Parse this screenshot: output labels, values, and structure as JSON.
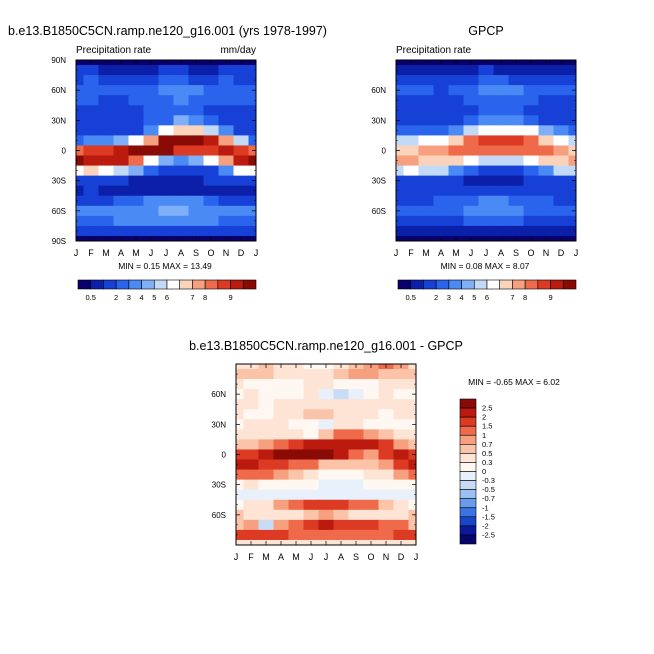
{
  "chart_data": [
    {
      "type": "heatmap",
      "id": "model",
      "title": "b.e13.B1850C5CN.ramp.ne120_g16.001 (yrs 1978-1997)",
      "subtitle_left": "Precipitation rate",
      "subtitle_right": "mm/day",
      "x_ticks": [
        "J",
        "F",
        "M",
        "A",
        "M",
        "J",
        "J",
        "A",
        "S",
        "O",
        "N",
        "D",
        "J"
      ],
      "y_ticks": [
        "90N",
        "60N",
        "30N",
        "0",
        "30S",
        "60S",
        "90S"
      ],
      "y_range": [
        90,
        -90
      ],
      "stats_text": "MIN =  0.15 MAX =  13.49",
      "min": 0.15,
      "max": 13.49,
      "colorbar_labels": [
        "0.5",
        "2",
        "3",
        "4",
        "5",
        "6",
        "7",
        "8",
        "9"
      ],
      "colorbar_colors": [
        "#08016c",
        "#0b1fa8",
        "#1640d6",
        "#2a64ec",
        "#4a8af4",
        "#7eaff7",
        "#c2daf7",
        "#ffffff",
        "#fbd2ba",
        "#f7a07f",
        "#ee6a4a",
        "#dc3a22",
        "#bb1a0e",
        "#8a0a06"
      ],
      "rows": [
        [
          0.5,
          0.5,
          0.5,
          0.5,
          0.5,
          0.5,
          0.5,
          0.5,
          0.5,
          0.5,
          0.5,
          0.5,
          0.5
        ],
        [
          1.3,
          1.3,
          1.2,
          1.0,
          1.0,
          1.2,
          1.4,
          1.3,
          1.2,
          1.2,
          1.3,
          1.3,
          1.3
        ],
        [
          2.0,
          2.1,
          2.0,
          1.8,
          1.8,
          2.0,
          2.3,
          2.2,
          1.9,
          2.0,
          2.1,
          2.0,
          2.0
        ],
        [
          2.4,
          2.3,
          2.2,
          2.1,
          2.2,
          2.5,
          3.0,
          2.9,
          2.6,
          2.4,
          2.3,
          2.4,
          2.4
        ],
        [
          2.3,
          2.2,
          2.0,
          2.0,
          2.2,
          2.4,
          2.5,
          2.6,
          2.5,
          2.3,
          2.2,
          2.3,
          2.3
        ],
        [
          1.9,
          1.8,
          1.7,
          1.8,
          2.0,
          2.2,
          2.3,
          2.4,
          2.3,
          2.0,
          1.9,
          1.9,
          1.9
        ],
        [
          1.5,
          1.6,
          1.5,
          1.5,
          1.7,
          2.1,
          2.5,
          3.2,
          3.0,
          2.3,
          1.8,
          1.6,
          1.5
        ],
        [
          1.5,
          1.6,
          1.4,
          1.5,
          1.9,
          2.8,
          4.2,
          5.5,
          5.3,
          4.0,
          3.0,
          2.0,
          1.5
        ],
        [
          2.5,
          2.8,
          3.0,
          3.4,
          4.4,
          6.5,
          9.5,
          11.5,
          11.2,
          9.0,
          6.5,
          4.0,
          2.5
        ],
        [
          7.0,
          7.5,
          8.0,
          8.5,
          9.5,
          10.0,
          9.5,
          8.0,
          7.5,
          7.8,
          8.5,
          8.0,
          7.0
        ],
        [
          9.2,
          9.0,
          8.8,
          8.3,
          7.0,
          5.0,
          3.5,
          3.0,
          3.2,
          4.5,
          6.5,
          8.5,
          9.2
        ],
        [
          5.0,
          5.3,
          4.8,
          4.0,
          3.2,
          2.2,
          1.5,
          1.3,
          1.4,
          1.8,
          3.0,
          4.5,
          5.0
        ],
        [
          1.8,
          2.0,
          1.8,
          1.5,
          1.2,
          1.0,
          1.0,
          1.0,
          1.1,
          1.3,
          1.6,
          1.8,
          1.8
        ],
        [
          1.2,
          1.3,
          1.2,
          1.1,
          1.0,
          1.0,
          1.1,
          1.1,
          1.0,
          1.0,
          1.1,
          1.2,
          1.2
        ],
        [
          1.8,
          1.9,
          2.0,
          2.1,
          2.3,
          2.6,
          3.0,
          2.9,
          2.6,
          2.3,
          2.0,
          1.8,
          1.8
        ],
        [
          2.6,
          2.6,
          2.6,
          2.7,
          2.8,
          3.0,
          3.4,
          3.3,
          3.0,
          2.8,
          2.7,
          2.6,
          2.6
        ],
        [
          2.4,
          2.4,
          2.5,
          2.6,
          2.7,
          2.8,
          3.0,
          3.0,
          2.8,
          2.6,
          2.5,
          2.4,
          2.4
        ],
        [
          1.5,
          1.5,
          1.5,
          1.6,
          1.6,
          1.6,
          1.6,
          1.6,
          1.5,
          1.5,
          1.5,
          1.5,
          1.5
        ],
        [
          0.5,
          0.5,
          0.5,
          0.5,
          0.5,
          0.5,
          0.5,
          0.5,
          0.5,
          0.5,
          0.5,
          0.5,
          0.5
        ]
      ]
    },
    {
      "type": "heatmap",
      "id": "gpcp",
      "title": "GPCP",
      "subtitle_left": "Precipitation rate",
      "subtitle_right": "",
      "x_ticks": [
        "J",
        "F",
        "M",
        "A",
        "M",
        "J",
        "J",
        "A",
        "S",
        "O",
        "N",
        "D",
        "J"
      ],
      "y_ticks": [
        "60N",
        "30N",
        "0",
        "30S",
        "60S"
      ],
      "y_range": [
        90,
        -90
      ],
      "stats_text": "MIN =  0.08 MAX =   8.07",
      "min": 0.08,
      "max": 8.07,
      "colorbar_labels": [
        "0.5",
        "2",
        "3",
        "4",
        "5",
        "6",
        "7",
        "8",
        "9"
      ],
      "colorbar_colors": [
        "#08016c",
        "#0b1fa8",
        "#1640d6",
        "#2a64ec",
        "#4a8af4",
        "#7eaff7",
        "#c2daf7",
        "#ffffff",
        "#fbd2ba",
        "#f7a07f",
        "#ee6a4a",
        "#dc3a22",
        "#bb1a0e",
        "#8a0a06"
      ],
      "rows": [
        [
          0.2,
          0.2,
          0.2,
          0.2,
          0.3,
          0.3,
          0.4,
          0.3,
          0.3,
          0.2,
          0.2,
          0.2,
          0.2
        ],
        [
          1.0,
          1.0,
          0.9,
          0.9,
          1.0,
          1.2,
          1.3,
          1.2,
          1.1,
          1.0,
          1.0,
          1.0,
          1.0
        ],
        [
          1.8,
          1.8,
          1.7,
          1.6,
          1.7,
          1.9,
          2.2,
          2.2,
          2.0,
          1.9,
          1.9,
          1.8,
          1.8
        ],
        [
          2.3,
          2.2,
          2.1,
          2.0,
          2.1,
          2.4,
          2.8,
          2.8,
          2.6,
          2.4,
          2.3,
          2.3,
          2.3
        ],
        [
          2.0,
          1.9,
          1.8,
          1.8,
          1.9,
          2.1,
          2.3,
          2.4,
          2.3,
          2.1,
          2.0,
          2.0,
          2.0
        ],
        [
          1.7,
          1.7,
          1.6,
          1.6,
          1.8,
          2.0,
          2.2,
          2.3,
          2.2,
          2.0,
          1.8,
          1.7,
          1.7
        ],
        [
          1.6,
          1.6,
          1.5,
          1.6,
          1.8,
          2.2,
          2.7,
          3.0,
          2.9,
          2.4,
          2.0,
          1.7,
          1.6
        ],
        [
          2.2,
          2.2,
          2.1,
          2.3,
          2.8,
          3.6,
          4.5,
          5.0,
          4.8,
          4.2,
          3.4,
          2.6,
          2.2
        ],
        [
          3.8,
          4.0,
          4.3,
          4.8,
          5.5,
          6.6,
          7.6,
          8.0,
          7.8,
          7.0,
          5.8,
          4.6,
          3.8
        ],
        [
          5.8,
          6.0,
          6.2,
          6.5,
          6.8,
          6.9,
          6.8,
          6.6,
          6.6,
          6.8,
          6.9,
          6.5,
          5.8
        ],
        [
          6.2,
          6.1,
          6.0,
          5.8,
          5.3,
          4.6,
          4.0,
          3.8,
          4.0,
          4.6,
          5.4,
          6.0,
          6.2
        ],
        [
          4.0,
          4.2,
          4.0,
          3.6,
          3.0,
          2.4,
          2.0,
          1.9,
          2.0,
          2.4,
          3.0,
          3.6,
          4.0
        ],
        [
          1.8,
          1.9,
          1.8,
          1.6,
          1.4,
          1.2,
          1.1,
          1.1,
          1.2,
          1.4,
          1.6,
          1.8,
          1.8
        ],
        [
          1.4,
          1.4,
          1.4,
          1.4,
          1.4,
          1.3,
          1.3,
          1.3,
          1.3,
          1.3,
          1.4,
          1.4,
          1.4
        ],
        [
          1.9,
          1.9,
          2.0,
          2.1,
          2.2,
          2.4,
          2.6,
          2.6,
          2.5,
          2.3,
          2.1,
          1.9,
          1.9
        ],
        [
          2.3,
          2.3,
          2.3,
          2.4,
          2.5,
          2.6,
          2.8,
          2.8,
          2.7,
          2.5,
          2.4,
          2.3,
          2.3
        ],
        [
          1.9,
          1.9,
          1.9,
          2.0,
          2.0,
          2.1,
          2.2,
          2.2,
          2.1,
          2.0,
          1.9,
          1.9,
          1.9
        ],
        [
          0.9,
          0.9,
          0.9,
          0.9,
          0.9,
          0.9,
          0.9,
          0.9,
          0.9,
          0.9,
          0.9,
          0.9,
          0.9
        ],
        [
          0.3,
          0.3,
          0.3,
          0.3,
          0.3,
          0.3,
          0.3,
          0.3,
          0.3,
          0.3,
          0.3,
          0.3,
          0.3
        ]
      ]
    },
    {
      "type": "heatmap",
      "id": "diff",
      "title": "b.e13.B1850C5CN.ramp.ne120_g16.001 - GPCP",
      "subtitle_left": "",
      "subtitle_right": "",
      "x_ticks": [
        "J",
        "F",
        "M",
        "A",
        "M",
        "J",
        "J",
        "A",
        "S",
        "O",
        "N",
        "D",
        "J"
      ],
      "y_ticks": [
        "60N",
        "30N",
        "0",
        "30S",
        "60S"
      ],
      "y_range": [
        90,
        -90
      ],
      "stats_text": "MIN = -0.65 MAX =   6.02",
      "min": -0.65,
      "max": 6.02,
      "colorbar_labels": [
        "2.5",
        "2",
        "1.5",
        "1",
        "0.7",
        "0.5",
        "0.3",
        "0",
        "-0.3",
        "-0.5",
        "-0.7",
        "-1",
        "-1.5",
        "-2",
        "-2.5"
      ],
      "colorbar_colors": [
        "#8a0a06",
        "#bb1a0e",
        "#dc3a22",
        "#ee6a4a",
        "#f7a07f",
        "#fbc4a8",
        "#fde4d4",
        "#fff8f2",
        "#e8f0fb",
        "#c8dcf6",
        "#9cc0f2",
        "#6a9cec",
        "#3a74e2",
        "#1846c8",
        "#0b1a9a",
        "#06066a"
      ],
      "rows": [
        [
          0.3,
          0.4,
          0.5,
          0.4,
          0.3,
          0.2,
          0.2,
          0.3,
          0.6,
          0.9,
          1.2,
          0.9,
          0.3
        ],
        [
          0.5,
          0.6,
          0.5,
          0.4,
          0.4,
          0.3,
          0.4,
          0.6,
          0.8,
          0.7,
          0.6,
          0.5,
          0.5
        ],
        [
          0.3,
          0.2,
          0.1,
          0.0,
          0.2,
          0.4,
          0.3,
          0.1,
          0.0,
          0.2,
          0.3,
          0.3,
          0.3
        ],
        [
          0.2,
          0.3,
          0.2,
          0.1,
          0.2,
          0.3,
          -0.2,
          -0.4,
          -0.1,
          0.2,
          0.3,
          0.2,
          0.2
        ],
        [
          0.4,
          0.3,
          0.2,
          0.3,
          0.4,
          0.4,
          0.3,
          0.3,
          0.4,
          0.3,
          0.3,
          0.3,
          0.4
        ],
        [
          0.3,
          0.2,
          0.2,
          0.3,
          0.4,
          0.5,
          0.5,
          0.4,
          0.4,
          0.3,
          0.2,
          0.3,
          0.3
        ],
        [
          0.2,
          0.3,
          0.4,
          0.3,
          0.2,
          0.1,
          -0.1,
          0.3,
          0.4,
          0.2,
          0.1,
          0.1,
          0.2
        ],
        [
          0.3,
          0.4,
          0.4,
          0.3,
          0.3,
          0.2,
          0.6,
          1.0,
          1.2,
          0.8,
          0.5,
          0.4,
          0.3
        ],
        [
          0.5,
          0.6,
          0.8,
          1.1,
          1.6,
          2.0,
          2.0,
          2.2,
          2.4,
          2.0,
          1.5,
          0.9,
          0.5
        ],
        [
          1.5,
          1.8,
          2.2,
          2.6,
          3.2,
          3.3,
          3.0,
          2.0,
          1.2,
          0.8,
          1.8,
          2.0,
          1.5
        ],
        [
          2.2,
          2.0,
          1.9,
          1.7,
          1.4,
          1.0,
          0.6,
          0.5,
          0.5,
          0.6,
          0.9,
          1.6,
          2.2
        ],
        [
          1.0,
          1.2,
          1.0,
          0.8,
          0.6,
          0.3,
          0.2,
          0.1,
          0.2,
          0.3,
          0.4,
          0.7,
          1.0
        ],
        [
          0.2,
          0.3,
          0.2,
          0.2,
          0.1,
          0.0,
          -0.1,
          -0.2,
          -0.1,
          0.0,
          0.1,
          0.1,
          0.2
        ],
        [
          -0.1,
          -0.1,
          -0.2,
          -0.2,
          -0.3,
          -0.3,
          -0.2,
          -0.2,
          -0.3,
          -0.3,
          -0.2,
          -0.1,
          -0.1
        ],
        [
          0.2,
          0.3,
          0.4,
          0.7,
          1.0,
          1.5,
          1.8,
          1.6,
          1.4,
          1.0,
          0.6,
          0.3,
          0.2
        ],
        [
          0.5,
          0.4,
          0.3,
          0.3,
          0.4,
          0.5,
          0.7,
          0.6,
          0.4,
          0.4,
          0.4,
          0.4,
          0.5
        ],
        [
          0.6,
          0.7,
          -0.4,
          0.8,
          1.2,
          1.8,
          2.0,
          1.9,
          1.8,
          1.6,
          1.4,
          1.2,
          0.6
        ],
        [
          1.6,
          1.6,
          1.5,
          1.5,
          1.4,
          1.3,
          1.3,
          1.2,
          1.2,
          1.3,
          1.4,
          1.5,
          1.6
        ],
        [
          0.4,
          0.4,
          0.3,
          0.3,
          0.3,
          0.3,
          0.3,
          0.3,
          0.3,
          0.3,
          0.3,
          0.4,
          0.4
        ]
      ]
    }
  ]
}
